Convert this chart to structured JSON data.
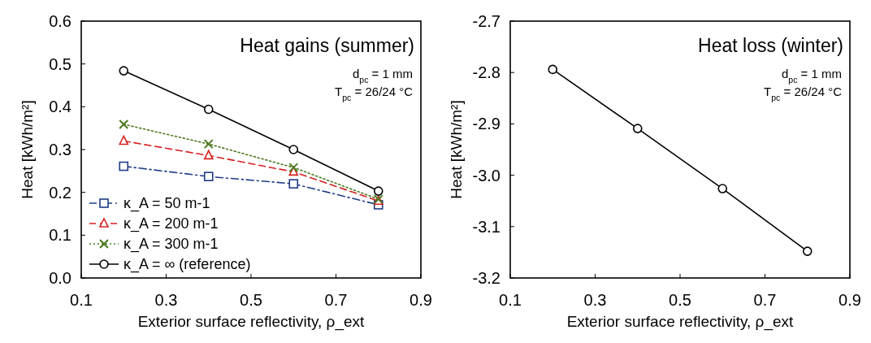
{
  "chart_data": [
    {
      "type": "line",
      "title": "Heat gains (summer)",
      "xlabel": "Exterior surface reflectivity, ρ_ext",
      "ylabel": "Heat [kWh/m²]",
      "annotations": [
        "d$_{pc}$ = 1 mm",
        "T$_{pc}$ = 26/24 °C"
      ],
      "x": [
        0.2,
        0.4,
        0.6,
        0.8
      ],
      "xlim": [
        0.1,
        0.9
      ],
      "xticks": [
        0.1,
        0.3,
        0.5,
        0.7,
        0.9
      ],
      "ylim": [
        0,
        0.6
      ],
      "yticks": [
        {
          "value": 0,
          "label": "0.0"
        },
        0.1,
        0.2,
        0.3,
        0.4,
        0.5,
        0.6
      ],
      "grid": false,
      "legend": "bottom left",
      "series": [
        {
          "name": "κ_A = 50 m-1",
          "color": "#1f3c88",
          "values": [
            0.261,
            0.237,
            0.22,
            0.171
          ],
          "marker": "square",
          "line_style": "dashdot"
        },
        {
          "name": "κ_A = 200 m-1",
          "color": "#d62020",
          "values": [
            0.32,
            0.286,
            0.248,
            0.18
          ],
          "marker": "triangle",
          "line_style": "dashed"
        },
        {
          "name": "κ_A = 300 m-1",
          "color": "#4a7a1e",
          "values": [
            0.359,
            0.313,
            0.258,
            0.184
          ],
          "marker": "cross",
          "line_style": "dotted"
        },
        {
          "name": "κ_A = ∞ (reference)",
          "color": "#000000",
          "values": [
            0.484,
            0.394,
            0.3,
            0.203
          ],
          "marker": "circle",
          "line_style": "solid"
        }
      ]
    },
    {
      "type": "line",
      "title": "Heat loss (winter)",
      "xlabel": "Exterior surface reflectivity, ρ_ext",
      "ylabel": "Heat [kWh/m²]",
      "annotations": [
        "d$_{pc}$ = 1 mm",
        "T$_{pc}$ = 26/24 °C"
      ],
      "x": [
        0.2,
        0.4,
        0.6,
        0.8
      ],
      "xlim": [
        0.1,
        0.9
      ],
      "xticks": [
        0.1,
        0.3,
        0.5,
        0.7,
        0.9
      ],
      "ylim": [
        -3.2,
        -2.7
      ],
      "yticks": [
        -3.2,
        -3.1,
        {
          "value": -3.0,
          "label": "-3.0"
        },
        -2.9,
        -2.8,
        -2.7
      ],
      "grid": false,
      "legend": false,
      "series": [
        {
          "color": "#000000",
          "values": [
            -2.794,
            -2.909,
            -3.026,
            -3.148
          ],
          "marker": "circle",
          "line_style": "solid"
        }
      ]
    }
  ]
}
